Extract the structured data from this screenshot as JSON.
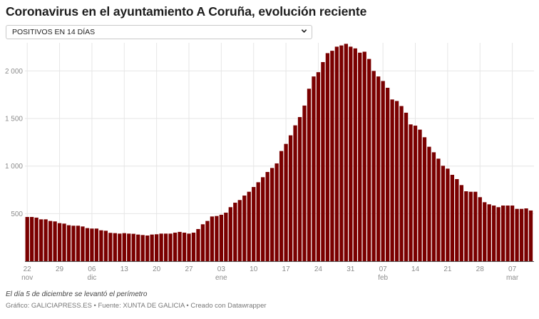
{
  "title": "Coronavirus en el ayuntamiento A Coruña, evolución reciente",
  "selector": {
    "selected": "POSITIVOS EN 14 DÍAS"
  },
  "note": "El día 5 de diciembre se levantó el perímetro",
  "footer": "Gráfico: GALICIAPRESS.ES • Fuente: XUNTA DE GALICIA • Creado con Datawrapper",
  "chart_data": {
    "type": "bar",
    "title": "",
    "xlabel": "",
    "ylabel": "",
    "ylim": [
      0,
      2280
    ],
    "grid": true,
    "bar_color": "#7a0000",
    "y_ticks": [
      {
        "value": 500,
        "label": "500"
      },
      {
        "value": 1000,
        "label": "1 000"
      },
      {
        "value": 1500,
        "label": "1 500"
      },
      {
        "value": 2000,
        "label": "2 000"
      }
    ],
    "x_ticks": [
      {
        "date": "nov 22",
        "label": "22",
        "month": "nov"
      },
      {
        "date": "nov 29",
        "label": "29",
        "month": ""
      },
      {
        "date": "dic 06",
        "label": "06",
        "month": "dic"
      },
      {
        "date": "dic 13",
        "label": "13",
        "month": ""
      },
      {
        "date": "dic 20",
        "label": "20",
        "month": ""
      },
      {
        "date": "dic 27",
        "label": "27",
        "month": ""
      },
      {
        "date": "ene 03",
        "label": "03",
        "month": "ene"
      },
      {
        "date": "ene 10",
        "label": "10",
        "month": ""
      },
      {
        "date": "ene 17",
        "label": "17",
        "month": ""
      },
      {
        "date": "ene 24",
        "label": "24",
        "month": ""
      },
      {
        "date": "ene 31",
        "label": "31",
        "month": ""
      },
      {
        "date": "feb 07",
        "label": "07",
        "month": "feb"
      },
      {
        "date": "feb 14",
        "label": "14",
        "month": ""
      },
      {
        "date": "feb 21",
        "label": "21",
        "month": ""
      },
      {
        "date": "feb 28",
        "label": "28",
        "month": ""
      },
      {
        "date": "mar 07",
        "label": "07",
        "month": "mar"
      }
    ],
    "categories": [
      "nov 22",
      "nov 23",
      "nov 24",
      "nov 25",
      "nov 26",
      "nov 27",
      "nov 28",
      "nov 29",
      "nov 30",
      "dic 01",
      "dic 02",
      "dic 03",
      "dic 04",
      "dic 05",
      "dic 06",
      "dic 07",
      "dic 08",
      "dic 09",
      "dic 10",
      "dic 11",
      "dic 12",
      "dic 13",
      "dic 14",
      "dic 15",
      "dic 16",
      "dic 17",
      "dic 18",
      "dic 19",
      "dic 20",
      "dic 21",
      "dic 22",
      "dic 23",
      "dic 24",
      "dic 25",
      "dic 26",
      "dic 27",
      "dic 28",
      "dic 29",
      "dic 30",
      "dic 31",
      "ene 01",
      "ene 02",
      "ene 03",
      "ene 04",
      "ene 05",
      "ene 06",
      "ene 07",
      "ene 08",
      "ene 09",
      "ene 10",
      "ene 11",
      "ene 12",
      "ene 13",
      "ene 14",
      "ene 15",
      "ene 16",
      "ene 17",
      "ene 18",
      "ene 19",
      "ene 20",
      "ene 21",
      "ene 22",
      "ene 23",
      "ene 24",
      "ene 25",
      "ene 26",
      "ene 27",
      "ene 28",
      "ene 29",
      "ene 30",
      "ene 31",
      "feb 01",
      "feb 02",
      "feb 03",
      "feb 04",
      "feb 05",
      "feb 06",
      "feb 07",
      "feb 08",
      "feb 09",
      "feb 10",
      "feb 11",
      "feb 12",
      "feb 13",
      "feb 14",
      "feb 15",
      "feb 16",
      "feb 17",
      "feb 18",
      "feb 19",
      "feb 20",
      "feb 21",
      "feb 22",
      "feb 23",
      "feb 24",
      "feb 25",
      "feb 26",
      "feb 27",
      "feb 28",
      "mar 01",
      "mar 02",
      "mar 03",
      "mar 04",
      "mar 05",
      "mar 06",
      "mar 07",
      "mar 08",
      "mar 09",
      "mar 10",
      "mar 11"
    ],
    "values": [
      465,
      465,
      458,
      440,
      440,
      423,
      418,
      400,
      395,
      378,
      373,
      373,
      365,
      348,
      343,
      343,
      325,
      320,
      298,
      295,
      290,
      295,
      290,
      288,
      280,
      275,
      270,
      280,
      283,
      290,
      290,
      290,
      300,
      308,
      300,
      290,
      300,
      338,
      388,
      423,
      470,
      475,
      488,
      510,
      568,
      615,
      643,
      690,
      730,
      780,
      830,
      883,
      938,
      980,
      1028,
      1158,
      1233,
      1323,
      1428,
      1515,
      1636,
      1813,
      1942,
      1987,
      2093,
      2187,
      2212,
      2255,
      2268,
      2285,
      2255,
      2237,
      2192,
      2202,
      2126,
      2000,
      1942,
      1894,
      1823,
      1700,
      1684,
      1631,
      1561,
      1438,
      1425,
      1383,
      1303,
      1203,
      1145,
      1078,
      1003,
      973,
      908,
      863,
      800,
      735,
      730,
      730,
      673,
      620,
      598,
      585,
      568,
      585,
      585,
      585,
      550,
      550,
      555,
      533
    ]
  }
}
